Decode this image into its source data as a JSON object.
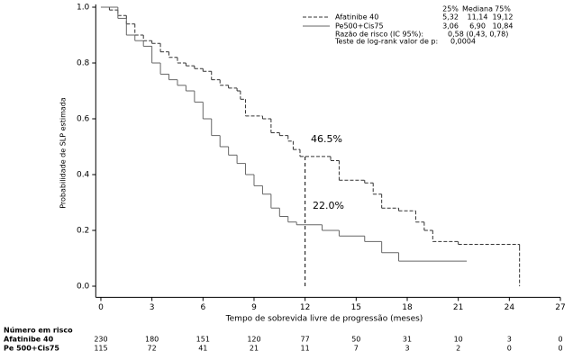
{
  "chart_data": {
    "type": "km",
    "x_label": "Tempo de sobrevida livre de progressão (meses)",
    "y_label": "Probabilidade de SLP estimada",
    "xlim": [
      -0.3,
      27
    ],
    "ylim": [
      -0.04,
      1.01
    ],
    "xticks": [
      0,
      3,
      6,
      9,
      12,
      15,
      18,
      21,
      24,
      27
    ],
    "yticks": [
      {
        "value": 0,
        "label": "0.0"
      },
      {
        "value": 0.2,
        "label": "0.2"
      },
      {
        "value": 0.4,
        "label": "0.4"
      },
      {
        "value": 0.6,
        "label": "0.6"
      },
      {
        "value": 0.8,
        "label": "0.8"
      },
      {
        "value": 1,
        "label": "1.0"
      }
    ],
    "reference_x": 12,
    "series": [
      {
        "name": "Afatinibe 40",
        "color": "#333333",
        "dash": true,
        "x": [
          0,
          0.5,
          1,
          1.5,
          2,
          2.5,
          3,
          3.5,
          4,
          4.5,
          5,
          5.5,
          6,
          6.5,
          7,
          7.5,
          8,
          8.2,
          8.5,
          9.5,
          10,
          10.5,
          11,
          11.3,
          11.7,
          13.5,
          14,
          15.5,
          16,
          16.5,
          17.5,
          18.5,
          19,
          19.5,
          21,
          24.6,
          24.6
        ],
        "values": [
          1,
          0.99,
          0.97,
          0.94,
          0.9,
          0.88,
          0.87,
          0.84,
          0.82,
          0.8,
          0.79,
          0.78,
          0.77,
          0.74,
          0.72,
          0.71,
          0.7,
          0.67,
          0.61,
          0.6,
          0.55,
          0.54,
          0.52,
          0.49,
          0.465,
          0.45,
          0.38,
          0.37,
          0.33,
          0.28,
          0.27,
          0.23,
          0.2,
          0.16,
          0.15,
          0.14,
          0
        ]
      },
      {
        "name": "Pe500+Cis75",
        "color": "#666666",
        "dash": false,
        "x": [
          0,
          1,
          1.5,
          2,
          2.5,
          3,
          3.5,
          4,
          4.5,
          5,
          5.5,
          6,
          6.5,
          7,
          7.5,
          8,
          8.5,
          9,
          9.5,
          10,
          10.5,
          11,
          11.5,
          13,
          14,
          15.5,
          16.5,
          17.5,
          21.5
        ],
        "values": [
          1,
          0.96,
          0.9,
          0.88,
          0.86,
          0.8,
          0.76,
          0.74,
          0.72,
          0.7,
          0.66,
          0.6,
          0.54,
          0.5,
          0.47,
          0.44,
          0.4,
          0.36,
          0.33,
          0.28,
          0.25,
          0.23,
          0.22,
          0.2,
          0.18,
          0.16,
          0.12,
          0.09,
          0.09
        ]
      }
    ],
    "annotations": [
      "46.5%",
      "22.0%"
    ],
    "stats": {
      "header": [
        "25%",
        "Mediana",
        "75%"
      ],
      "rows": [
        [
          "5,32",
          "11,14",
          "19,12"
        ],
        [
          "3,06",
          "6,90",
          "10,84"
        ]
      ],
      "hr_label": "Razão de risco (IC 95%):",
      "hr_value": "0,58 (0,43, 0,78)",
      "p_label": "Teste de log-rank valor de p:",
      "p_value": "0,0004"
    },
    "risk_table": {
      "title": "Número em risco",
      "rows": [
        {
          "name": "Afatinibe 40",
          "values": [
            230,
            180,
            151,
            120,
            77,
            50,
            31,
            10,
            3,
            0
          ]
        },
        {
          "name": "Pe 500+Cis75",
          "values": [
            115,
            72,
            41,
            21,
            11,
            7,
            3,
            2,
            0,
            0
          ]
        }
      ]
    }
  }
}
